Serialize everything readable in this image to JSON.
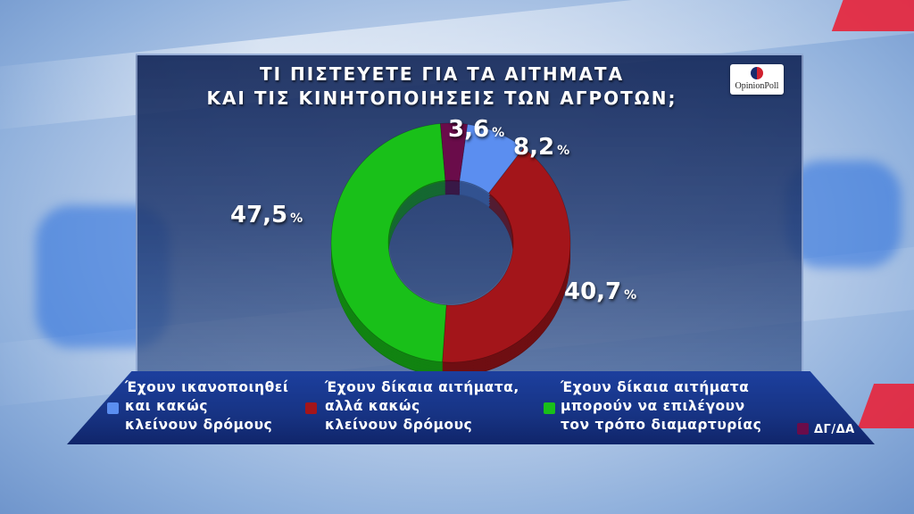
{
  "title": {
    "line1": "ΤΙ ΠΙΣΤΕΥΕΤΕ ΓΙΑ ΤΑ ΑΙΤΗΜΑΤΑ",
    "line2": "ΚΑΙ ΤΙΣ ΚΙΝΗΤΟΠΟΙΗΣΕΙΣ ΤΩΝ ΑΓΡΟΤΩΝ;"
  },
  "logo_text": "OpinionPoll",
  "percent_sign": "%",
  "chart_data": {
    "type": "pie",
    "donut": true,
    "title": "ΤΙ ΠΙΣΤΕΥΕΤΕ ΓΙΑ ΤΑ ΑΙΤΗΜΑΤΑ ΚΑΙ ΤΙΣ ΚΙΝΗΤΟΠΟΙΗΣΕΙΣ ΤΩΝ ΑΓΡΟΤΩΝ;",
    "legend_position": "bottom",
    "slices": [
      {
        "name": "Έχουν ικανοποιηθεί και κακώς κλείνουν δρόμους",
        "value": 8.2,
        "label": "8,2",
        "color": "#5b8ef0"
      },
      {
        "name": "Έχουν δίκαια αιτήματα, αλλά κακώς κλείνουν δρόμους",
        "value": 40.7,
        "label": "40,7",
        "color": "#a3151a"
      },
      {
        "name": "Έχουν δίκαια αιτήματα μπορούν να επιλέγουν τον τρόπο διαμαρτυρίας",
        "value": 47.5,
        "label": "47,5",
        "color": "#19c019"
      },
      {
        "name": "ΔΓ/ΔΑ",
        "value": 3.6,
        "label": "3,6",
        "color": "#6a0c4a"
      }
    ]
  },
  "legend": [
    {
      "lines": [
        "Έχουν ικανοποιηθεί",
        "και κακώς",
        "κλείνουν δρόμους"
      ],
      "color": "#5b8ef0"
    },
    {
      "lines": [
        "Έχουν δίκαια αιτήματα,",
        "αλλά κακώς",
        "κλείνουν δρόμους"
      ],
      "color": "#a3151a"
    },
    {
      "lines": [
        "Έχουν δίκαια αιτήματα",
        "μπορούν να επιλέγουν",
        "τον τρόπο διαμαρτυρίας"
      ],
      "color": "#19c019"
    },
    {
      "lines": [
        "ΔΓ/ΔΑ"
      ],
      "color": "#6a0c4a"
    }
  ]
}
